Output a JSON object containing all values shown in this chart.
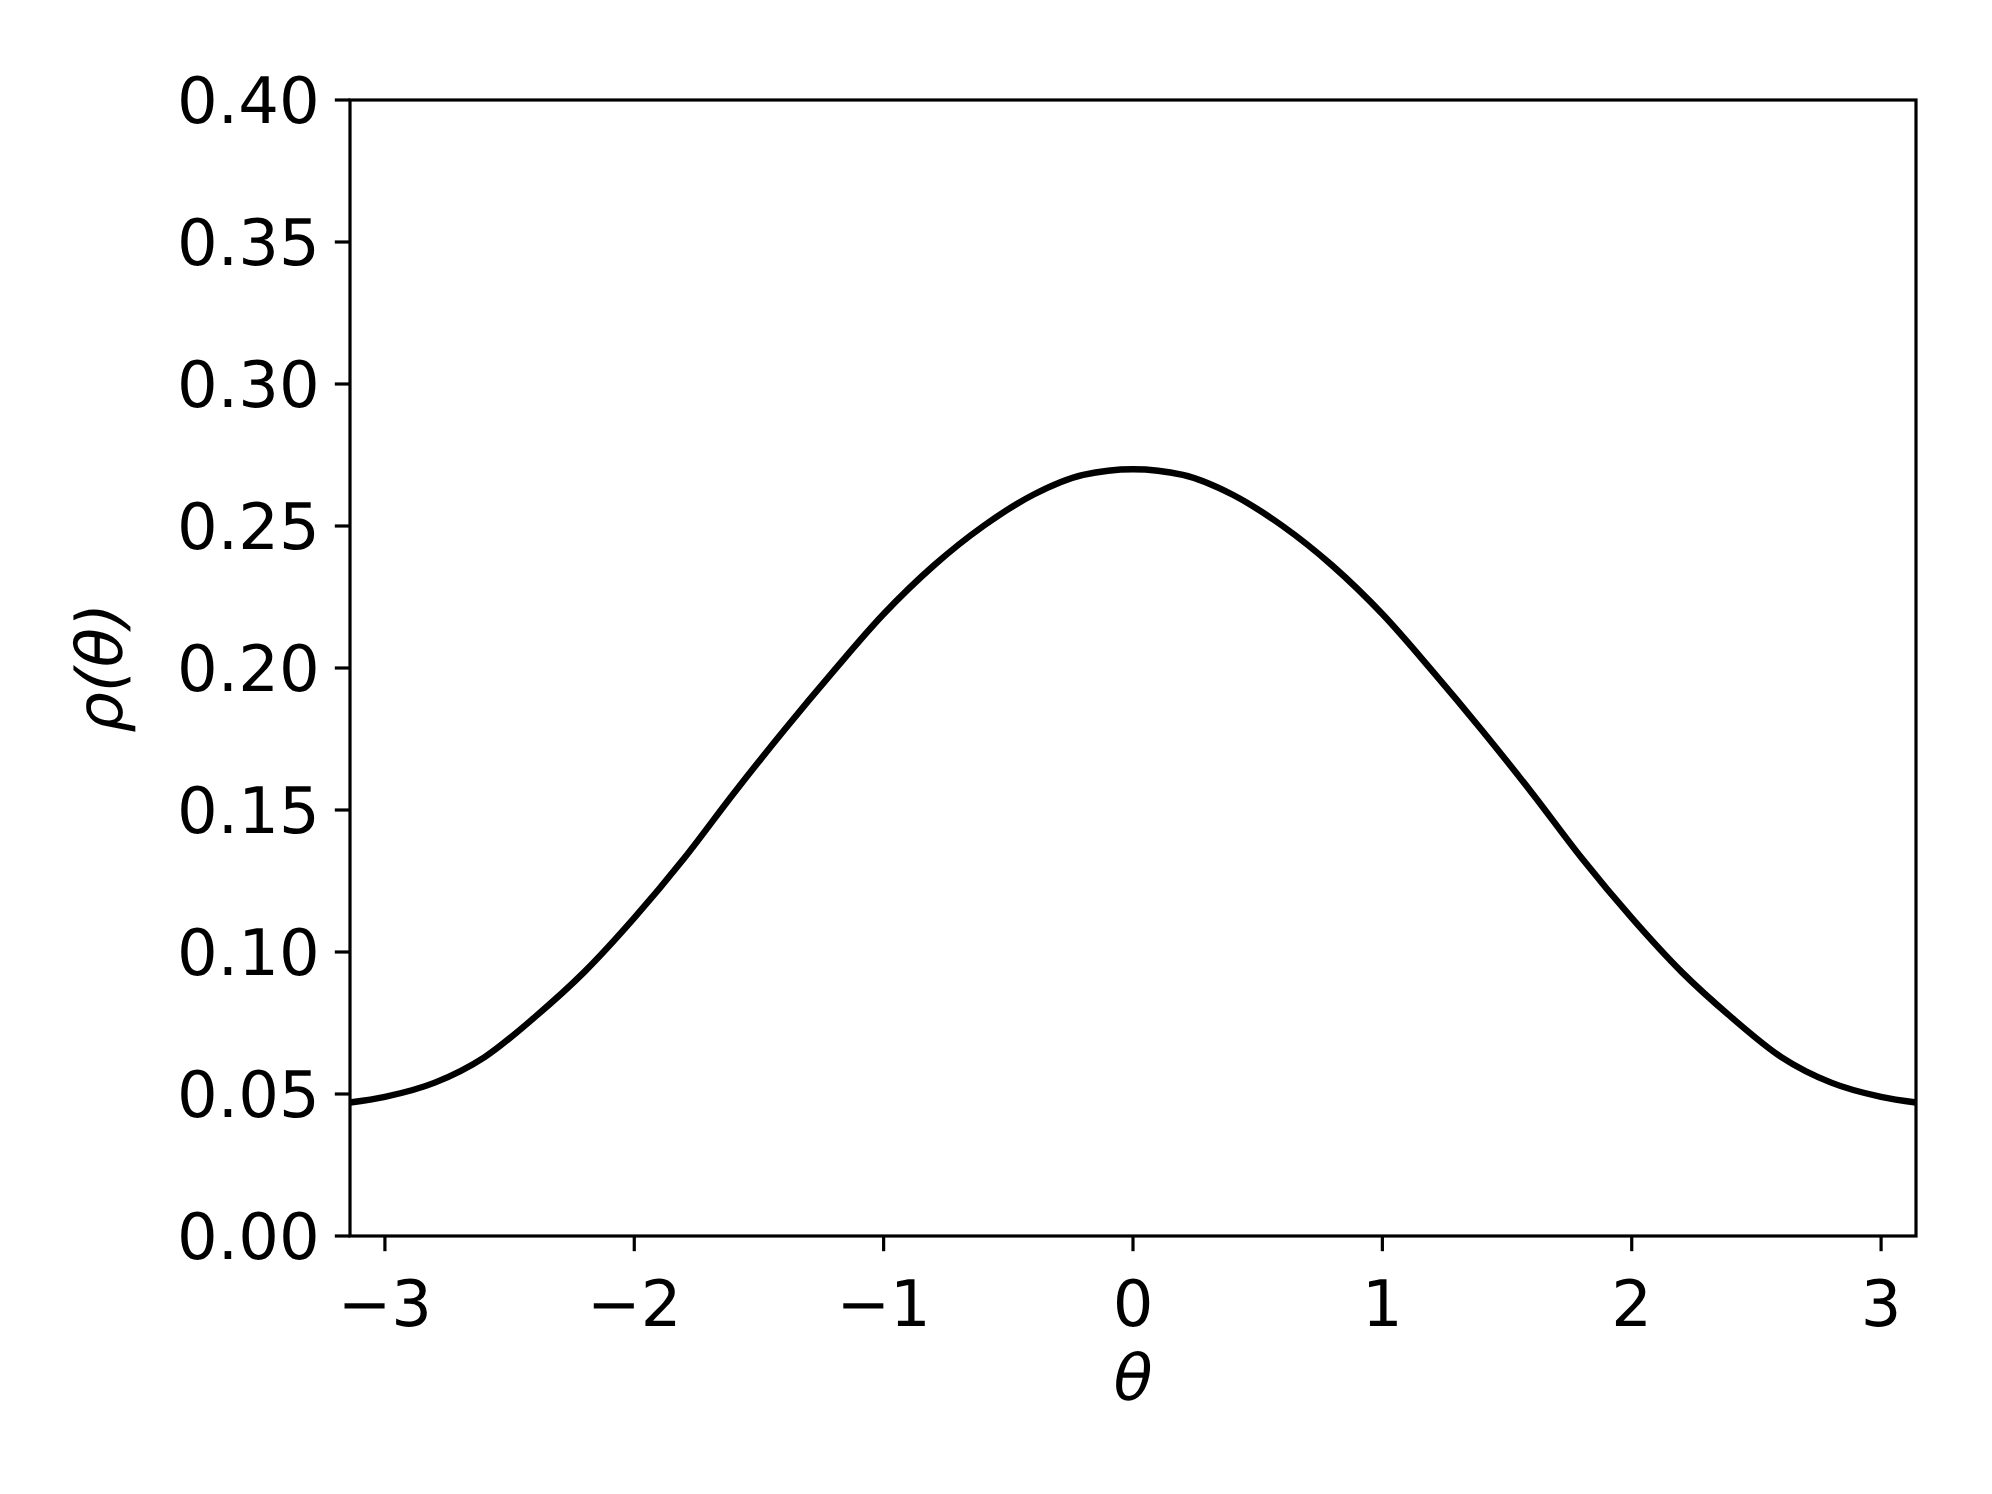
{
  "chart_data": {
    "type": "line",
    "xlabel": "θ",
    "ylabel": "ρ(θ)",
    "x": [
      -3.14,
      -3.0,
      -2.8,
      -2.6,
      -2.4,
      -2.2,
      -2.0,
      -1.8,
      -1.6,
      -1.4,
      -1.2,
      -1.0,
      -0.8,
      -0.6,
      -0.4,
      -0.2,
      0,
      0.2,
      0.4,
      0.6,
      0.8,
      1.0,
      1.2,
      1.4,
      1.6,
      1.8,
      2.0,
      2.2,
      2.4,
      2.6,
      2.8,
      3.0,
      3.14
    ],
    "series": [
      {
        "color": "#000000",
        "values": [
          0.047,
          0.049,
          0.054,
          0.063,
          0.077,
          0.093,
          0.112,
          0.133,
          0.156,
          0.178,
          0.199,
          0.219,
          0.236,
          0.25,
          0.261,
          0.268,
          0.27,
          0.268,
          0.261,
          0.25,
          0.236,
          0.219,
          0.199,
          0.178,
          0.156,
          0.133,
          0.112,
          0.093,
          0.077,
          0.063,
          0.054,
          0.049,
          0.047
        ]
      }
    ],
    "xlim": [
      -3.14,
      3.14
    ],
    "ylim": [
      0,
      0.4
    ],
    "xticks": [
      {
        "value": -3,
        "label": "−3"
      },
      {
        "value": -2,
        "label": "−2"
      },
      {
        "value": -1,
        "label": "−1"
      },
      0,
      1,
      2,
      3
    ],
    "yticks": [
      {
        "value": 0,
        "label": "0.00"
      },
      {
        "value": 0.05,
        "label": "0.05"
      },
      {
        "value": 0.1,
        "label": "0.10"
      },
      {
        "value": 0.15,
        "label": "0.15"
      },
      {
        "value": 0.2,
        "label": "0.20"
      },
      {
        "value": 0.25,
        "label": "0.25"
      },
      {
        "value": 0.3,
        "label": "0.30"
      },
      {
        "value": 0.35,
        "label": "0.35"
      },
      {
        "value": 0.4,
        "label": "0.40"
      }
    ],
    "line_style": "solid"
  }
}
